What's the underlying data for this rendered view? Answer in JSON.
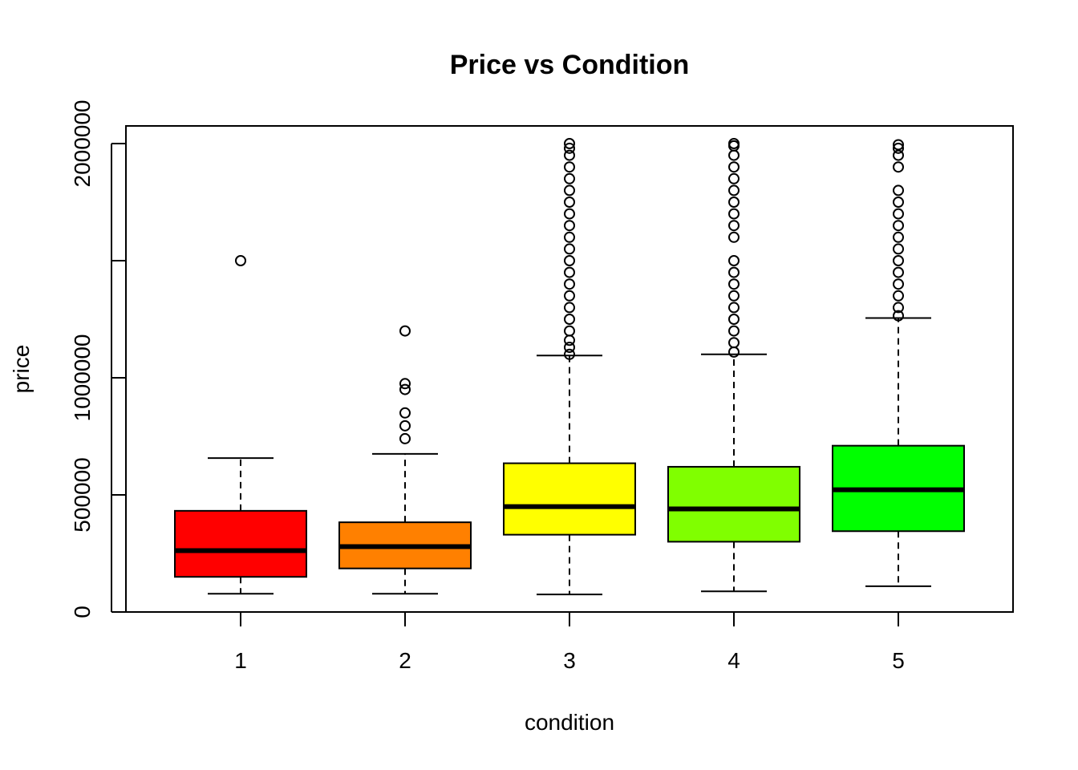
{
  "chart_data": {
    "type": "boxplot",
    "title": "Price vs Condition",
    "xlabel": "condition",
    "ylabel": "price",
    "ylim": [
      0,
      2000000
    ],
    "y_ticks": [
      0,
      500000,
      1000000,
      1500000,
      2000000
    ],
    "y_tick_labels": [
      "0",
      "500000",
      "1000000",
      "",
      "2000000"
    ],
    "grid": false,
    "legend": "none",
    "categories": [
      "1",
      "2",
      "3",
      "4",
      "5"
    ],
    "colors": [
      "#FF0000",
      "#FF8000",
      "#FFFF00",
      "#80FF00",
      "#00FF00"
    ],
    "boxes": [
      {
        "category": "1",
        "whisker_low": 78000,
        "q1": 150000,
        "median": 262000,
        "q3": 432000,
        "whisker_high": 657000,
        "outliers": [
          1500000
        ]
      },
      {
        "category": "2",
        "whisker_low": 78000,
        "q1": 186000,
        "median": 279000,
        "q3": 383000,
        "whisker_high": 675000,
        "outliers": [
          740000,
          795000,
          850000,
          950000,
          975000,
          1200000
        ]
      },
      {
        "category": "3",
        "whisker_low": 75000,
        "q1": 330000,
        "median": 450000,
        "q3": 635000,
        "whisker_high": 1095000,
        "outliers": [
          1100000,
          1130000,
          1160000,
          1200000,
          1250000,
          1300000,
          1350000,
          1400000,
          1450000,
          1500000,
          1550000,
          1600000,
          1650000,
          1700000,
          1750000,
          1800000,
          1850000,
          1900000,
          1950000,
          1980000,
          2000000
        ]
      },
      {
        "category": "4",
        "whisker_low": 88000,
        "q1": 300000,
        "median": 440000,
        "q3": 620000,
        "whisker_high": 1100000,
        "outliers": [
          1110000,
          1150000,
          1200000,
          1250000,
          1300000,
          1350000,
          1400000,
          1450000,
          1500000,
          1600000,
          1650000,
          1700000,
          1750000,
          1800000,
          1850000,
          1900000,
          1950000,
          1990000,
          2000000
        ]
      },
      {
        "category": "5",
        "whisker_low": 110000,
        "q1": 345000,
        "median": 522000,
        "q3": 710000,
        "whisker_high": 1255000,
        "outliers": [
          1265000,
          1300000,
          1350000,
          1400000,
          1450000,
          1500000,
          1550000,
          1600000,
          1650000,
          1700000,
          1750000,
          1800000,
          1900000,
          1950000,
          1980000,
          1995000
        ]
      }
    ]
  }
}
